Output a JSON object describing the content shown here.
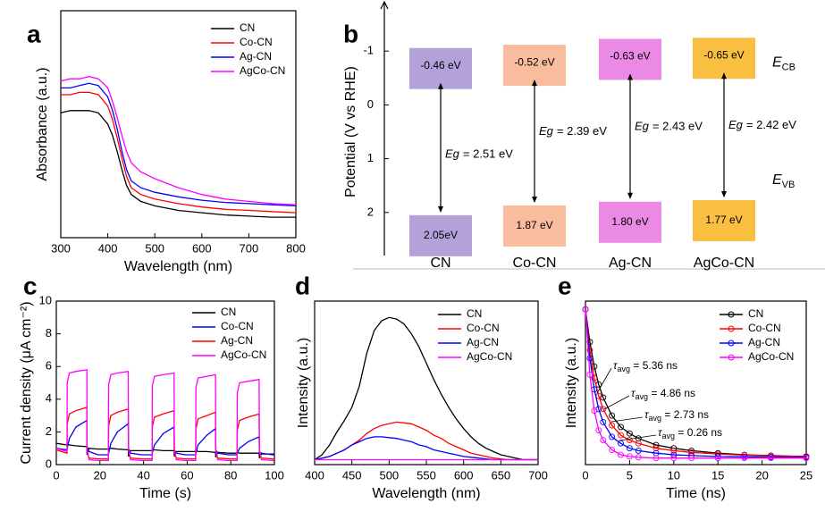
{
  "chart_data": [
    {
      "type": "line",
      "panel": "a",
      "xlabel": "Wavelength (nm)",
      "ylabel": "Absorbance (a.u.)",
      "xlim": [
        300,
        800
      ],
      "xticks": [
        300,
        400,
        500,
        600,
        700,
        800
      ],
      "ylim": [
        0,
        1
      ],
      "legend": "upper right",
      "x": [
        300,
        320,
        340,
        360,
        380,
        400,
        410,
        420,
        430,
        440,
        450,
        470,
        500,
        550,
        600,
        650,
        700,
        750,
        800
      ],
      "series": [
        {
          "name": "CN",
          "color": "#000000",
          "values": [
            0.55,
            0.56,
            0.56,
            0.56,
            0.55,
            0.5,
            0.45,
            0.38,
            0.3,
            0.23,
            0.19,
            0.16,
            0.14,
            0.12,
            0.11,
            0.1,
            0.095,
            0.09,
            0.09
          ]
        },
        {
          "name": "Co-CN",
          "color": "#ff0000",
          "values": [
            0.63,
            0.63,
            0.64,
            0.64,
            0.63,
            0.58,
            0.52,
            0.44,
            0.35,
            0.27,
            0.22,
            0.19,
            0.17,
            0.15,
            0.135,
            0.125,
            0.12,
            0.115,
            0.11
          ]
        },
        {
          "name": "Ag-CN",
          "color": "#0000ff",
          "values": [
            0.66,
            0.66,
            0.67,
            0.68,
            0.67,
            0.62,
            0.56,
            0.48,
            0.38,
            0.3,
            0.25,
            0.22,
            0.2,
            0.18,
            0.165,
            0.155,
            0.15,
            0.145,
            0.14
          ]
        },
        {
          "name": "AgCo-CN",
          "color": "#ff00ff",
          "values": [
            0.69,
            0.7,
            0.7,
            0.71,
            0.7,
            0.66,
            0.6,
            0.53,
            0.45,
            0.38,
            0.33,
            0.29,
            0.26,
            0.22,
            0.19,
            0.17,
            0.16,
            0.15,
            0.145
          ]
        }
      ]
    },
    {
      "type": "band",
      "panel": "b",
      "ylabel": "Potential (V vs RHE)",
      "ylim": [
        2.8,
        -1.8
      ],
      "yticks": [
        -1,
        0,
        1,
        2
      ],
      "categories": [
        "CN",
        "Co-CN",
        "Ag-CN",
        "AgCo-CN"
      ],
      "colors": [
        "#9a82cc",
        "#f7a77e",
        "#e463dc",
        "#f5aa00"
      ],
      "cb": [
        -0.46,
        -0.52,
        -0.63,
        -0.65
      ],
      "cb_labels": [
        "-0.46 eV",
        "-0.52 eV",
        "-0.63 eV",
        "-0.65 eV"
      ],
      "vb": [
        2.05,
        1.87,
        1.8,
        1.77
      ],
      "vb_labels": [
        "2.05eV",
        "1.87 eV",
        "1.80 eV",
        "1.77 eV"
      ],
      "eg_symbol": "Eg",
      "eg_labels": [
        "= 2.51 eV",
        "= 2.39 eV",
        "= 2.43 eV",
        "= 2.42 eV"
      ],
      "cb_level": {
        "symbol": "E",
        "sub": "CB"
      },
      "vb_level": {
        "symbol": "E",
        "sub": "VB"
      }
    },
    {
      "type": "line",
      "panel": "c",
      "xlabel": "Time (s)",
      "ylabel": "Current density (μA cm⁻²)",
      "xlim": [
        0,
        100
      ],
      "xticks": [
        0,
        20,
        40,
        60,
        80,
        100
      ],
      "ylim": [
        0,
        10
      ],
      "yticks": [
        0,
        2,
        4,
        6,
        8,
        10
      ],
      "legend": "upper right",
      "x": [
        0,
        4.9,
        5,
        6,
        9,
        14,
        14.1,
        15,
        19,
        23.9,
        24,
        25,
        28,
        33,
        33.1,
        34,
        39,
        43.9,
        44,
        45,
        49,
        54,
        54.1,
        55,
        59,
        63.9,
        64,
        65,
        69,
        73,
        73.1,
        74,
        79,
        82.9,
        83,
        84,
        88,
        93,
        93.1,
        94,
        99,
        100
      ],
      "series": [
        {
          "name": "CN",
          "color": "#000000",
          "values": [
            1.3,
            1.2,
            1.25,
            1.2,
            1.15,
            1.1,
            0.6,
            1.0,
            0.95,
            0.95,
            1.0,
            1.0,
            0.95,
            0.9,
            0.5,
            0.85,
            0.85,
            0.85,
            0.9,
            0.9,
            0.85,
            0.85,
            0.5,
            0.8,
            0.8,
            0.8,
            0.85,
            0.8,
            0.8,
            0.75,
            0.45,
            0.75,
            0.7,
            0.7,
            0.75,
            0.7,
            0.7,
            0.7,
            0.4,
            0.65,
            0.65,
            0.65
          ]
        },
        {
          "name": "Co-CN",
          "color": "#0000ff",
          "values": [
            1.0,
            0.9,
            1.0,
            1.6,
            2.3,
            2.7,
            1.1,
            0.8,
            0.6,
            0.6,
            0.7,
            1.3,
            2.0,
            2.5,
            1.0,
            0.7,
            0.6,
            0.6,
            0.7,
            1.2,
            1.9,
            2.3,
            0.9,
            0.7,
            0.6,
            0.6,
            0.7,
            1.2,
            1.8,
            2.2,
            0.9,
            0.7,
            0.6,
            0.6,
            0.7,
            1.0,
            1.4,
            1.7,
            0.8,
            0.7,
            0.6,
            0.6
          ]
        },
        {
          "name": "Ag-CN",
          "color": "#ff0000",
          "values": [
            0.9,
            0.7,
            2.5,
            3.1,
            3.3,
            3.5,
            0.8,
            0.4,
            0.35,
            0.35,
            2.4,
            3.0,
            3.2,
            3.4,
            0.8,
            0.4,
            0.35,
            0.35,
            2.3,
            2.9,
            3.1,
            3.3,
            0.8,
            0.4,
            0.35,
            0.35,
            2.2,
            2.8,
            3.0,
            3.2,
            0.8,
            0.4,
            0.35,
            0.35,
            2.1,
            2.7,
            2.9,
            3.1,
            0.8,
            0.4,
            0.35,
            0.3
          ]
        },
        {
          "name": "AgCo-CN",
          "color": "#ff00ff",
          "values": [
            1.0,
            0.8,
            5.0,
            5.6,
            5.7,
            5.8,
            1.0,
            0.3,
            0.25,
            0.25,
            4.9,
            5.5,
            5.6,
            5.7,
            1.0,
            0.3,
            0.25,
            0.25,
            4.8,
            5.4,
            5.5,
            5.6,
            1.0,
            0.3,
            0.25,
            0.25,
            4.7,
            5.3,
            5.4,
            5.5,
            0.9,
            0.3,
            0.25,
            0.25,
            4.4,
            5.0,
            5.1,
            5.2,
            0.9,
            0.3,
            0.25,
            0.2
          ]
        }
      ]
    },
    {
      "type": "line",
      "panel": "d",
      "xlabel": "Wavelength (nm)",
      "ylabel": "Intensity (a.u.)",
      "xlim": [
        400,
        700
      ],
      "xticks": [
        400,
        450,
        500,
        550,
        600,
        650,
        700
      ],
      "ylim": [
        0,
        1
      ],
      "legend": "upper right",
      "x": [
        400,
        410,
        420,
        430,
        440,
        450,
        460,
        470,
        480,
        490,
        500,
        510,
        520,
        530,
        540,
        550,
        560,
        570,
        580,
        590,
        600,
        610,
        620,
        630,
        640,
        650,
        660,
        670,
        680,
        690,
        700
      ],
      "series": [
        {
          "name": "CN",
          "color": "#000000",
          "values": [
            0.03,
            0.06,
            0.12,
            0.2,
            0.27,
            0.35,
            0.48,
            0.68,
            0.82,
            0.88,
            0.9,
            0.89,
            0.86,
            0.8,
            0.72,
            0.62,
            0.52,
            0.43,
            0.35,
            0.28,
            0.22,
            0.17,
            0.13,
            0.1,
            0.08,
            0.06,
            0.05,
            0.04,
            0.03,
            0.03,
            0.03
          ]
        },
        {
          "name": "Co-CN",
          "color": "#ff0000",
          "values": [
            0.03,
            0.04,
            0.05,
            0.07,
            0.09,
            0.12,
            0.15,
            0.19,
            0.22,
            0.24,
            0.25,
            0.26,
            0.255,
            0.25,
            0.23,
            0.21,
            0.18,
            0.16,
            0.13,
            0.11,
            0.09,
            0.07,
            0.06,
            0.05,
            0.04,
            0.035,
            0.03,
            0.03,
            0.03,
            0.03,
            0.03
          ]
        },
        {
          "name": "Ag-CN",
          "color": "#0000ff",
          "values": [
            0.03,
            0.04,
            0.05,
            0.07,
            0.09,
            0.12,
            0.14,
            0.16,
            0.17,
            0.17,
            0.165,
            0.16,
            0.15,
            0.14,
            0.12,
            0.11,
            0.09,
            0.08,
            0.07,
            0.06,
            0.05,
            0.045,
            0.04,
            0.035,
            0.03,
            0.03,
            0.03,
            0.03,
            0.03,
            0.03,
            0.03
          ]
        },
        {
          "name": "AgCo-CN",
          "color": "#ff00ff",
          "values": [
            0.03,
            0.03,
            0.03,
            0.03,
            0.03,
            0.03,
            0.03,
            0.03,
            0.03,
            0.03,
            0.03,
            0.03,
            0.03,
            0.03,
            0.03,
            0.03,
            0.03,
            0.03,
            0.03,
            0.03,
            0.03,
            0.03,
            0.03,
            0.03,
            0.03,
            0.03,
            0.03,
            0.03,
            0.03,
            0.03,
            0.03
          ]
        }
      ]
    },
    {
      "type": "line",
      "panel": "e",
      "xlabel": "Time (ns)",
      "ylabel": "Intensity (a.u.)",
      "markers": true,
      "xlim": [
        0,
        25
      ],
      "xticks": [
        0,
        5,
        10,
        15,
        20,
        25
      ],
      "ylim": [
        0,
        1
      ],
      "legend": "upper right",
      "x": [
        0,
        0.5,
        1,
        1.5,
        2,
        3,
        4,
        5,
        6,
        8,
        10,
        12,
        15,
        18,
        21,
        25
      ],
      "series": [
        {
          "name": "CN",
          "color": "#000000",
          "values": [
            0.95,
            0.75,
            0.6,
            0.49,
            0.41,
            0.3,
            0.23,
            0.19,
            0.16,
            0.12,
            0.1,
            0.085,
            0.07,
            0.06,
            0.055,
            0.05
          ]
        },
        {
          "name": "Co-CN",
          "color": "#ff0000",
          "values": [
            0.95,
            0.7,
            0.53,
            0.42,
            0.34,
            0.24,
            0.18,
            0.15,
            0.13,
            0.1,
            0.085,
            0.075,
            0.065,
            0.058,
            0.053,
            0.05
          ]
        },
        {
          "name": "Ag-CN",
          "color": "#0000ff",
          "values": [
            0.95,
            0.65,
            0.46,
            0.34,
            0.26,
            0.17,
            0.13,
            0.1,
            0.085,
            0.07,
            0.06,
            0.055,
            0.05,
            0.048,
            0.046,
            0.045
          ]
        },
        {
          "name": "AgCo-CN",
          "color": "#ff00ff",
          "values": [
            0.95,
            0.55,
            0.33,
            0.21,
            0.15,
            0.09,
            0.06,
            0.05,
            0.045,
            0.04,
            0.04,
            0.04,
            0.04,
            0.04,
            0.04,
            0.04
          ]
        }
      ],
      "annotations": [
        {
          "symbol": "τ",
          "sub": "avg",
          "text": " = 5.36 ns"
        },
        {
          "symbol": "τ",
          "sub": "avg",
          "text": " = 4.86 ns"
        },
        {
          "symbol": "τ",
          "sub": "avg",
          "text": " = 2.73 ns"
        },
        {
          "symbol": "τ",
          "sub": "avg",
          "text": " = 0.26 ns"
        }
      ]
    }
  ]
}
